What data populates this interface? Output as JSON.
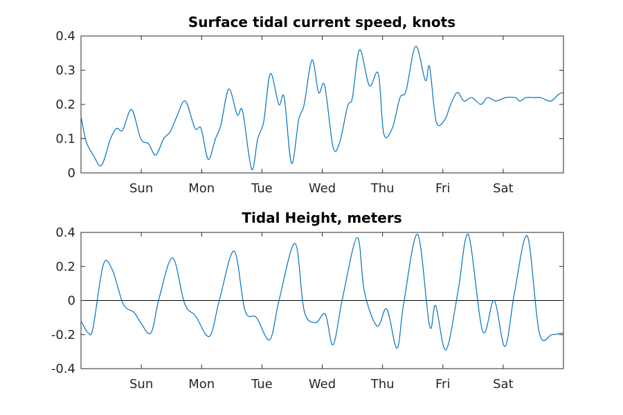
{
  "chart_data": [
    {
      "type": "line",
      "title": "Surface tidal current speed, knots",
      "xlabel": "",
      "ylabel": "",
      "xlim": [
        0,
        8
      ],
      "ylim": [
        0,
        0.4
      ],
      "yticks": [
        0,
        0.1,
        0.2,
        0.3,
        0.4
      ],
      "ytick_labels": [
        "0",
        "0.1",
        "0.2",
        "0.3",
        "0.4"
      ],
      "xticks": [
        1,
        2,
        3,
        4,
        5,
        6,
        7
      ],
      "xtick_labels": [
        "Sun",
        "Mon",
        "Tue",
        "Wed",
        "Thu",
        "Fri",
        "Sat"
      ],
      "grid": false,
      "color": "#0072BD",
      "series": [
        {
          "x": [
            0,
            0.09,
            0.21,
            0.34,
            0.49,
            0.59,
            0.69,
            0.84,
            0.99,
            1.12,
            1.24,
            1.37,
            1.48,
            1.59,
            1.73,
            1.89,
            1.99,
            2.11,
            2.23,
            2.32,
            2.45,
            2.59,
            2.68,
            2.83,
            2.93,
            3.03,
            3.14,
            3.28,
            3.37,
            3.49,
            3.61,
            3.7,
            3.83,
            3.94,
            4.04,
            4.18,
            4.29,
            4.42,
            4.5,
            4.62,
            4.78,
            4.93,
            5.02,
            5.16,
            5.29,
            5.39,
            5.55,
            5.71,
            5.78,
            5.89,
            6.03,
            6.13,
            6.24,
            6.35,
            6.48,
            6.63,
            6.74,
            6.88,
            7.04,
            7.2,
            7.28,
            7.38,
            7.52,
            7.62,
            7.79,
            7.92,
            8.0
          ],
          "y": [
            0.165,
            0.09,
            0.05,
            0.022,
            0.1,
            0.13,
            0.125,
            0.185,
            0.1,
            0.085,
            0.052,
            0.1,
            0.12,
            0.165,
            0.21,
            0.13,
            0.13,
            0.04,
            0.1,
            0.14,
            0.245,
            0.17,
            0.18,
            0.01,
            0.1,
            0.15,
            0.29,
            0.2,
            0.22,
            0.028,
            0.155,
            0.2,
            0.33,
            0.235,
            0.255,
            0.075,
            0.09,
            0.195,
            0.22,
            0.36,
            0.255,
            0.29,
            0.115,
            0.13,
            0.22,
            0.24,
            0.37,
            0.27,
            0.31,
            0.15,
            0.155,
            0.2,
            0.235,
            0.21,
            0.22,
            0.2,
            0.22,
            0.21,
            0.22,
            0.22,
            0.21,
            0.22,
            0.22,
            0.22,
            0.21,
            0.23,
            0.235
          ]
        }
      ]
    },
    {
      "type": "line",
      "title": "Tidal Height, meters",
      "xlabel": "",
      "ylabel": "",
      "xlim": [
        0,
        8
      ],
      "ylim": [
        -0.4,
        0.4
      ],
      "yticks": [
        -0.4,
        -0.2,
        0,
        0.2,
        0.4
      ],
      "ytick_labels": [
        "-0.4",
        "-0.2",
        "0",
        "0.2",
        "0.4"
      ],
      "xticks": [
        1,
        2,
        3,
        4,
        5,
        6,
        7
      ],
      "xtick_labels": [
        "Sun",
        "Mon",
        "Tue",
        "Wed",
        "Thu",
        "Fri",
        "Sat"
      ],
      "grid": false,
      "zero_line": true,
      "color": "#0072BD",
      "series": [
        {
          "x": [
            0,
            0.12,
            0.2,
            0.37,
            0.52,
            0.7,
            0.88,
            0.99,
            1.16,
            1.3,
            1.52,
            1.72,
            1.9,
            2.13,
            2.3,
            2.54,
            2.72,
            2.91,
            3.13,
            3.29,
            3.55,
            3.7,
            3.89,
            4.05,
            4.18,
            4.34,
            4.58,
            4.7,
            4.91,
            5.07,
            5.24,
            5.35,
            5.58,
            5.78,
            5.88,
            6.05,
            6.25,
            6.42,
            6.66,
            6.85,
            7.03,
            7.19,
            7.4,
            7.6,
            7.81,
            8.0
          ],
          "y": [
            -0.12,
            -0.19,
            -0.16,
            0.21,
            0.18,
            -0.02,
            -0.07,
            -0.13,
            -0.19,
            0.02,
            0.25,
            -0.02,
            -0.09,
            -0.21,
            0.01,
            0.29,
            -0.06,
            -0.1,
            -0.23,
            0.01,
            0.335,
            -0.06,
            -0.13,
            -0.08,
            -0.26,
            0.02,
            0.37,
            0.05,
            -0.15,
            -0.05,
            -0.28,
            -0.02,
            0.39,
            -0.15,
            -0.03,
            -0.29,
            0.05,
            0.39,
            -0.18,
            0.0,
            -0.27,
            0.05,
            0.38,
            -0.19,
            -0.2,
            -0.19
          ]
        }
      ]
    }
  ]
}
